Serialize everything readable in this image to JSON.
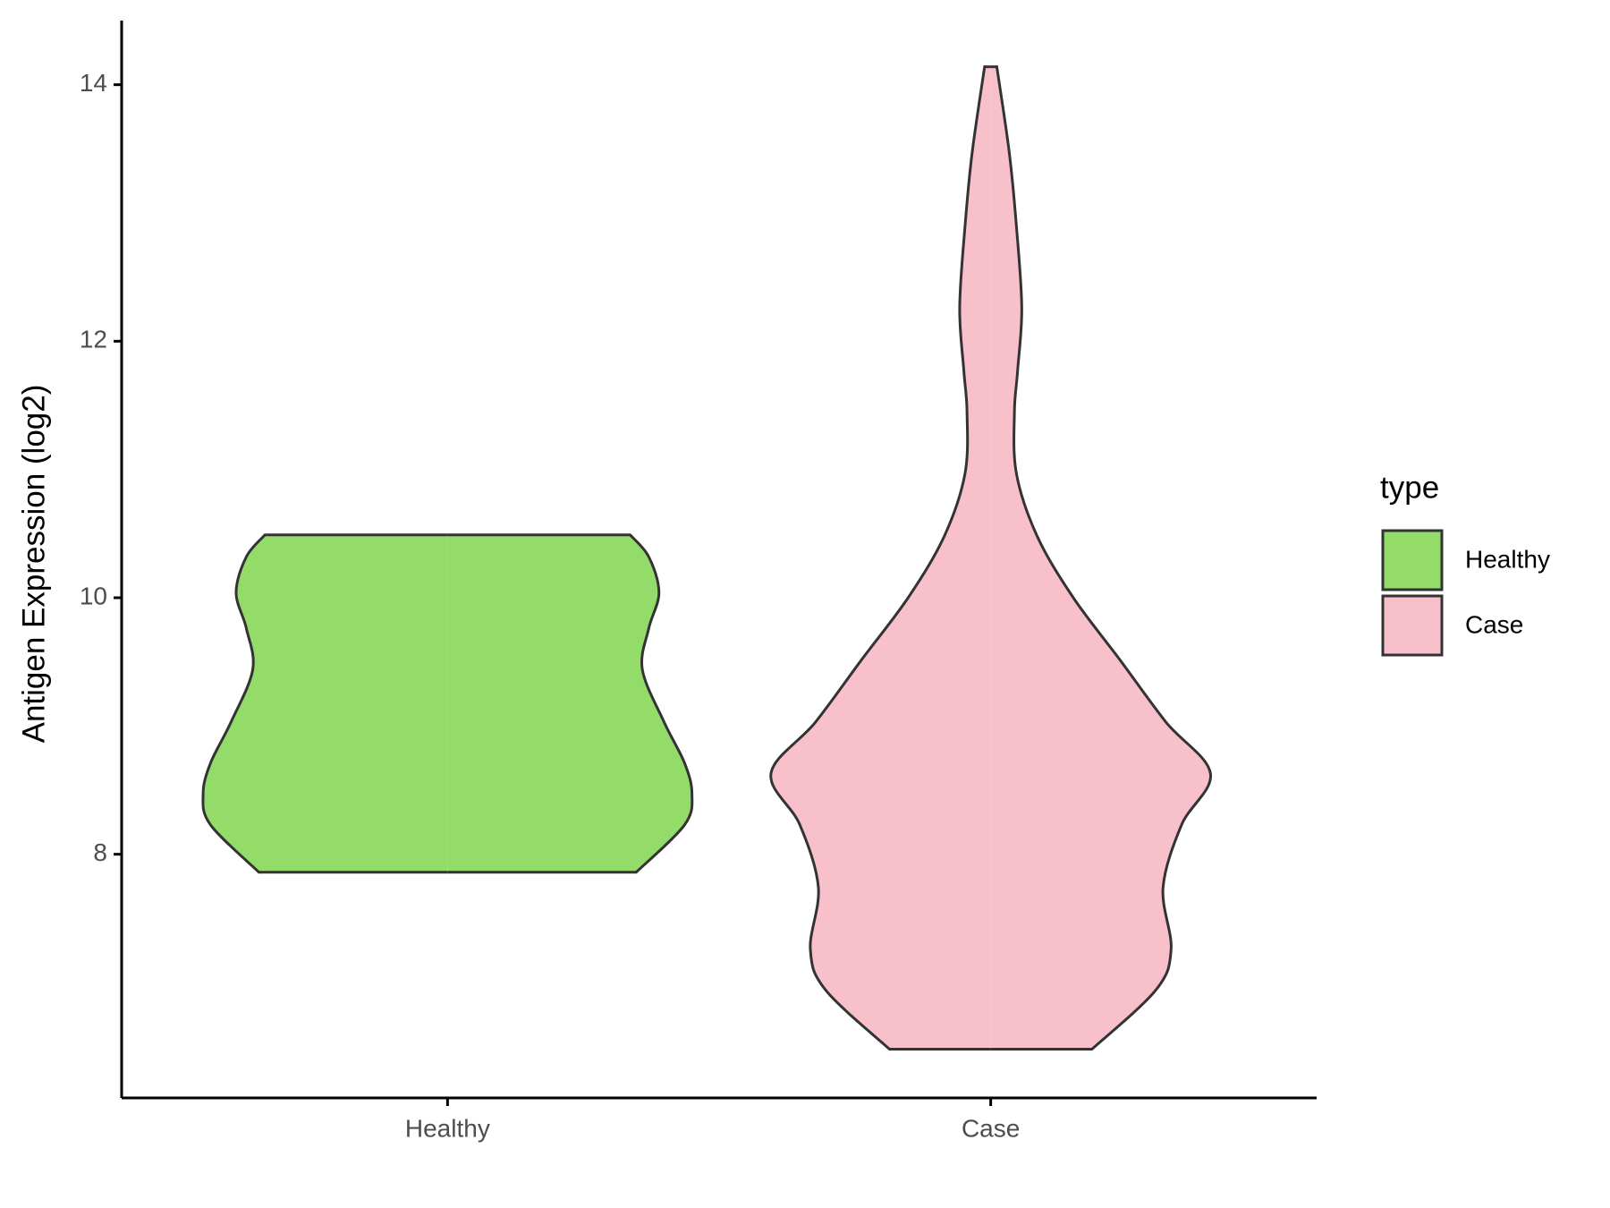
{
  "chart_data": {
    "type": "violin",
    "y_label": "Antigen Expression (log2)",
    "categories": [
      "Healthy",
      "Case"
    ],
    "ylim": [
      6.1,
      14.5
    ],
    "yticks": [
      8,
      10,
      12,
      14
    ],
    "legend_title": "type",
    "legend_position": "right",
    "series": [
      {
        "name": "Healthy",
        "color": "#93dc6a",
        "y": [
          10.49,
          10.32,
          10.04,
          9.76,
          9.44,
          9.03,
          8.71,
          8.47,
          8.23,
          7.86
        ],
        "density": [
          0.747,
          0.823,
          0.865,
          0.823,
          0.797,
          0.886,
          0.97,
          1,
          0.97,
          0.772
        ]
      },
      {
        "name": "Case",
        "color": "#f8c0cb",
        "y": [
          14.14,
          13.47,
          12.9,
          12.26,
          11.77,
          11.45,
          10.97,
          10.48,
          10.0,
          9.52,
          9.03,
          8.63,
          8.23,
          7.74,
          7.26,
          6.94,
          6.48
        ],
        "density": [
          0.025,
          0.076,
          0.105,
          0.127,
          0.11,
          0.097,
          0.105,
          0.19,
          0.338,
          0.527,
          0.717,
          0.899,
          0.781,
          0.705,
          0.738,
          0.675,
          0.414
        ]
      }
    ]
  }
}
